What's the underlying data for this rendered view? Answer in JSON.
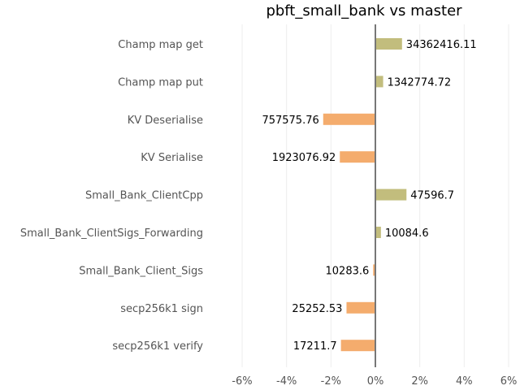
{
  "chart_data": {
    "type": "bar",
    "orientation": "horizontal",
    "title": "pbft_small_bank vs master",
    "xlabel": "",
    "ylabel": "",
    "xlim": [
      -6,
      6
    ],
    "x_ticks": [
      -6,
      -4,
      -2,
      0,
      2,
      4,
      6
    ],
    "x_tick_labels": [
      "-6%",
      "-4%",
      "-2%",
      "0%",
      "2%",
      "4%",
      "6%"
    ],
    "grid": "vertical",
    "colors": {
      "positive": "#c2bd7d",
      "negative": "#f4ac6d",
      "zero_line": "#777777"
    },
    "categories": [
      "Champ map get",
      "Champ map put",
      "KV Deserialise",
      "KV Serialise",
      "Small_Bank_ClientCpp",
      "Small_Bank_ClientSigs_Forwarding",
      "Small_Bank_Client_Sigs",
      "secp256k1 sign",
      "secp256k1 verify"
    ],
    "values": [
      1.2,
      0.35,
      -2.35,
      -1.6,
      1.4,
      0.25,
      -0.1,
      -1.3,
      -1.55
    ],
    "data_labels": [
      "34362416.11",
      "1342774.72",
      "757575.76",
      "1923076.92",
      "47596.7",
      "10084.6",
      "10283.6",
      "25252.53",
      "17211.7"
    ]
  }
}
